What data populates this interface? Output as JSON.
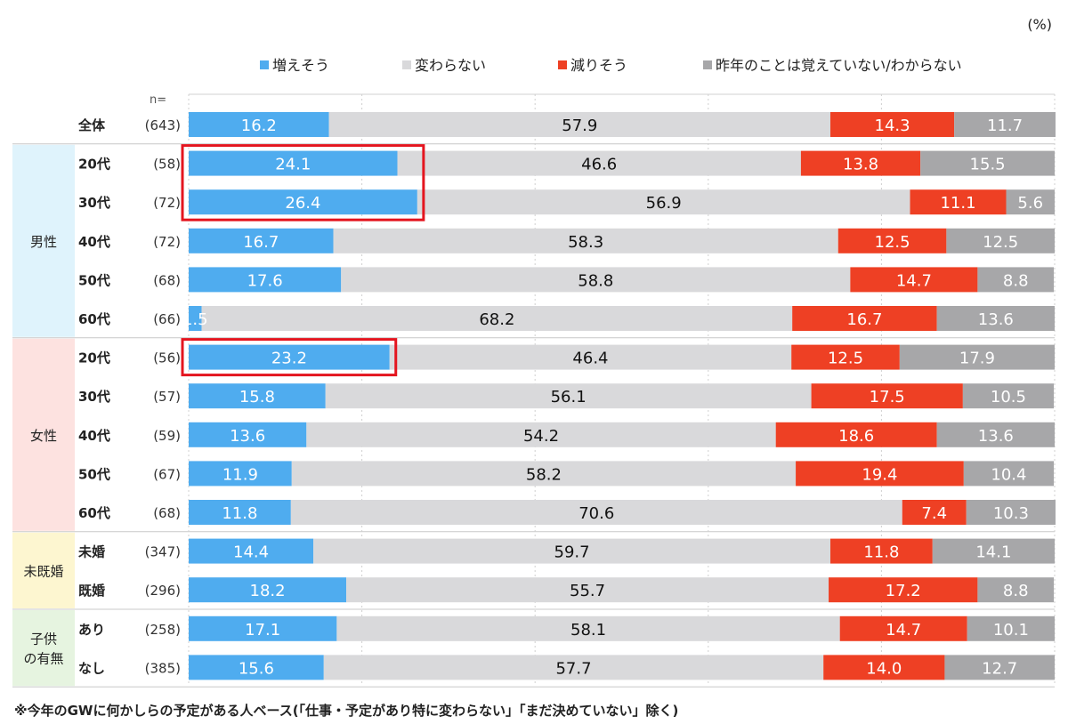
{
  "unit_label": "(%)",
  "n_label": "n=",
  "footnote": "※今年のGWに何かしらの予定がある人ベース(「仕事・予定があり特に変わらない」「まだ決めていない」除く)",
  "colors": {
    "increase": "#4facef",
    "same": "#d9d9db",
    "decrease": "#ee4024",
    "unknown": "#a7a7a9",
    "group_male": "#dff3fc",
    "group_female": "#fde2e0",
    "group_marriage": "#fdf6d0",
    "group_children": "#e6f4e0",
    "highlight": "#e4151f"
  },
  "chart_data": {
    "type": "bar",
    "orientation": "horizontal",
    "stacked": true,
    "xlim": [
      0,
      100
    ],
    "series_names": [
      "増えそう",
      "変わらない",
      "減りそう",
      "昨年のことは覚えていない/わからない"
    ],
    "groups": [
      {
        "label": "",
        "rows": [
          0
        ]
      },
      {
        "label": "男性",
        "rows": [
          1,
          2,
          3,
          4,
          5
        ]
      },
      {
        "label": "女性",
        "rows": [
          6,
          7,
          8,
          9,
          10
        ]
      },
      {
        "label": "未既婚",
        "rows": [
          11,
          12
        ]
      },
      {
        "label": "子供の有無",
        "rows": [
          13,
          14
        ]
      }
    ],
    "rows": [
      {
        "label": "全体",
        "n": "(643)",
        "values": [
          16.2,
          57.9,
          14.3,
          11.7
        ]
      },
      {
        "label": "20代",
        "n": "(58)",
        "values": [
          24.1,
          46.6,
          13.8,
          15.5
        ]
      },
      {
        "label": "30代",
        "n": "(72)",
        "values": [
          26.4,
          56.9,
          11.1,
          5.6
        ]
      },
      {
        "label": "40代",
        "n": "(72)",
        "values": [
          16.7,
          58.3,
          12.5,
          12.5
        ]
      },
      {
        "label": "50代",
        "n": "(68)",
        "values": [
          17.6,
          58.8,
          14.7,
          8.8
        ]
      },
      {
        "label": "60代",
        "n": "(66)",
        "values": [
          1.5,
          68.2,
          16.7,
          13.6
        ]
      },
      {
        "label": "20代",
        "n": "(56)",
        "values": [
          23.2,
          46.4,
          12.5,
          17.9
        ]
      },
      {
        "label": "30代",
        "n": "(57)",
        "values": [
          15.8,
          56.1,
          17.5,
          10.5
        ]
      },
      {
        "label": "40代",
        "n": "(59)",
        "values": [
          13.6,
          54.2,
          18.6,
          13.6
        ]
      },
      {
        "label": "50代",
        "n": "(67)",
        "values": [
          11.9,
          58.2,
          19.4,
          10.4
        ]
      },
      {
        "label": "60代",
        "n": "(68)",
        "values": [
          11.8,
          70.6,
          7.4,
          10.3
        ]
      },
      {
        "label": "未婚",
        "n": "(347)",
        "values": [
          14.4,
          59.7,
          11.8,
          14.1
        ]
      },
      {
        "label": "既婚",
        "n": "(296)",
        "values": [
          18.2,
          55.7,
          17.2,
          8.8
        ]
      },
      {
        "label": "あり",
        "n": "(258)",
        "values": [
          17.1,
          58.1,
          14.7,
          10.1
        ]
      },
      {
        "label": "なし",
        "n": "(385)",
        "values": [
          15.6,
          57.7,
          14.0,
          12.7
        ]
      }
    ],
    "highlight_boxes": [
      [
        1,
        2
      ],
      [
        6,
        6
      ]
    ]
  }
}
